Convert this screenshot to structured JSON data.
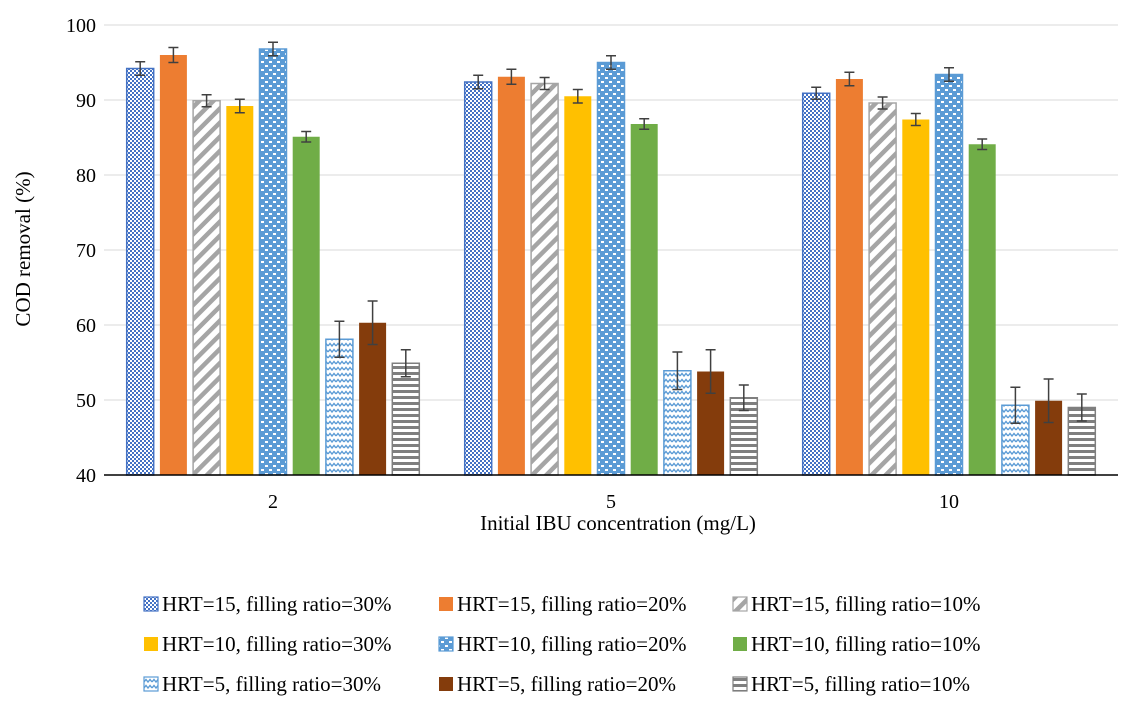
{
  "chart_data": {
    "type": "bar",
    "title": "",
    "xlabel": "Initial IBU concentration (mg/L)",
    "ylabel": "COD removal (%)",
    "ylim": [
      40,
      100
    ],
    "yticks": [
      40,
      50,
      60,
      70,
      80,
      90,
      100
    ],
    "grid": "horizontal",
    "legend_position": "bottom",
    "categories": [
      "2",
      "5",
      "10"
    ],
    "series": [
      {
        "name": "HRT=15, filling ratio=30%",
        "values": [
          94.2,
          92.4,
          90.9
        ],
        "errors": [
          0.9,
          0.9,
          0.8
        ],
        "color": "#4472c4",
        "pattern": "dots"
      },
      {
        "name": "HRT=15, filling ratio=20%",
        "values": [
          96.0,
          93.1,
          92.8
        ],
        "errors": [
          1.0,
          1.0,
          0.9
        ],
        "color": "#ed7d31",
        "pattern": "solid"
      },
      {
        "name": "HRT=15, filling ratio=10%",
        "values": [
          89.9,
          92.2,
          89.6
        ],
        "errors": [
          0.8,
          0.8,
          0.8
        ],
        "color": "#a5a5a5",
        "pattern": "diag"
      },
      {
        "name": "HRT=10, filling ratio=30%",
        "values": [
          89.2,
          90.5,
          87.4
        ],
        "errors": [
          0.9,
          0.9,
          0.8
        ],
        "color": "#ffc000",
        "pattern": "solid"
      },
      {
        "name": "HRT=10, filling ratio=20%",
        "values": [
          96.8,
          95.0,
          93.4
        ],
        "errors": [
          0.9,
          0.9,
          0.9
        ],
        "color": "#5b9bd5",
        "pattern": "bricks"
      },
      {
        "name": "HRT=10, filling ratio=10%",
        "values": [
          85.1,
          86.8,
          84.1
        ],
        "errors": [
          0.7,
          0.7,
          0.7
        ],
        "color": "#70ad47",
        "pattern": "solid"
      },
      {
        "name": "HRT=5, filling ratio=30%",
        "values": [
          58.1,
          53.9,
          49.3
        ],
        "errors": [
          2.4,
          2.5,
          2.4
        ],
        "color": "#5b9bd5",
        "pattern": "wave"
      },
      {
        "name": "HRT=5, filling ratio=20%",
        "values": [
          60.3,
          53.8,
          49.9
        ],
        "errors": [
          2.9,
          2.9,
          2.9
        ],
        "color": "#843c0c",
        "pattern": "solid"
      },
      {
        "name": "HRT=5, filling ratio=10%",
        "values": [
          54.9,
          50.3,
          49.0
        ],
        "errors": [
          1.8,
          1.7,
          1.8
        ],
        "color": "#7f7f7f",
        "pattern": "hstripe"
      }
    ]
  }
}
